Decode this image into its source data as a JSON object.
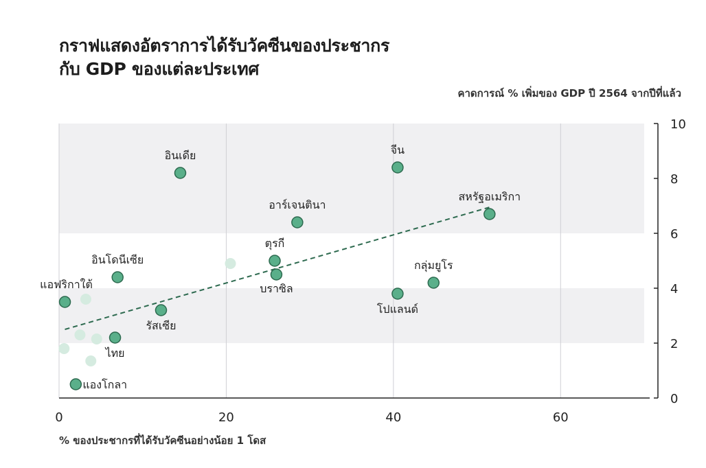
{
  "chart_data": {
    "type": "scatter",
    "title": "กราฟแสดงอัตราการได้รับวัคซีนของประชากร กับ GDP ของแต่ละประเทศ",
    "title_lines": [
      "กราฟแสดงอัตราการได้รับวัคซีนของประชากร",
      "กับ GDP ของแต่ละประเทศ"
    ],
    "xlabel": "% ของประชากรที่ได้รับวัคซีนอย่างน้อย 1 โดส",
    "ylabel": "คาดการณ์ % เพิ่มของ GDP ปี 2564 จากปีที่แล้ว",
    "xlim": [
      0,
      70
    ],
    "ylim": [
      0,
      10
    ],
    "xticks": [
      "0",
      "20",
      "40",
      "60"
    ],
    "yticks": [
      "0",
      "2",
      "4",
      "6",
      "8",
      "10"
    ],
    "grid": "alternating horizontal bands, vertical lines at x ticks",
    "y_axis_position": "right",
    "colors": {
      "point": "#5aaf8a",
      "point_stroke": "#2d6a4f",
      "faded_point": "#d5ebe0",
      "trend": "#2d6a4f",
      "band": "#f0f0f2"
    },
    "series": [
      {
        "points": [
          {
            "label": "อินเดีย",
            "x": 14.5,
            "y": 8.2
          },
          {
            "label": "จีน",
            "x": 40.5,
            "y": 8.4
          },
          {
            "label": "สหรัฐอเมริกา",
            "x": 51.5,
            "y": 6.7
          },
          {
            "label": "อาร์เจนตินา",
            "x": 28.5,
            "y": 6.4
          },
          {
            "label": "ตุรกี",
            "x": 25.8,
            "y": 5.0
          },
          {
            "label": "บราซิล",
            "x": 26.0,
            "y": 4.5
          },
          {
            "label": "อินโดนีเซีย",
            "x": 7.0,
            "y": 4.4
          },
          {
            "label": "กลุ่มยูโร",
            "x": 44.8,
            "y": 4.2
          },
          {
            "label": "โปแลนด์",
            "x": 40.5,
            "y": 3.8
          },
          {
            "label": "แอฟริกาใต้",
            "x": 0.7,
            "y": 3.5
          },
          {
            "label": "รัสเซีย",
            "x": 12.2,
            "y": 3.2
          },
          {
            "label": "ไทย",
            "x": 6.7,
            "y": 2.2
          },
          {
            "label": "แองโกลา",
            "x": 2.0,
            "y": 0.5
          }
        ]
      },
      {
        "faded": true,
        "points": [
          {
            "x": 20.5,
            "y": 4.9
          },
          {
            "x": 3.2,
            "y": 3.6
          },
          {
            "x": 2.5,
            "y": 2.3
          },
          {
            "x": 4.5,
            "y": 2.15
          },
          {
            "x": 0.6,
            "y": 1.8
          },
          {
            "x": 3.8,
            "y": 1.35
          }
        ]
      }
    ],
    "trendline": {
      "x": [
        0.7,
        51.5
      ],
      "y": [
        2.5,
        6.95
      ]
    }
  }
}
